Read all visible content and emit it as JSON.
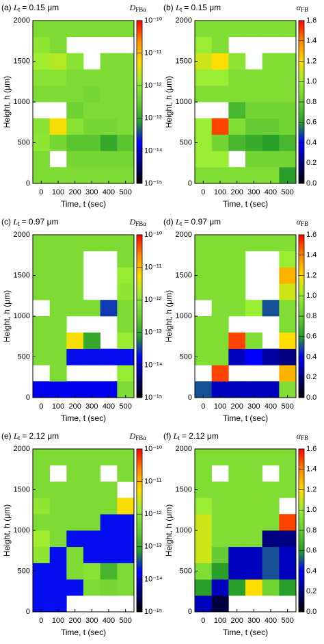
{
  "chart_data": [
    {
      "type": "heatmap",
      "panel_label": "(a)",
      "title_symbol": "L",
      "title_subscript": "t",
      "title_text": "= 0.15 μm",
      "colorbar_symbol": "D",
      "colorbar_subscript": "FBα",
      "xlabel": "Time, t (sec)",
      "ylabel": "Height, h (μm)",
      "xbins": [
        -50,
        50,
        150,
        250,
        350,
        450,
        550
      ],
      "ybins": [
        0,
        200,
        400,
        600,
        800,
        1000,
        1200,
        1400,
        1600,
        1800,
        2000
      ],
      "xlim": [
        -50,
        550
      ],
      "ylim": [
        0,
        2000
      ],
      "xticks": [
        0,
        100,
        200,
        300,
        400,
        500
      ],
      "yticks": [
        0,
        500,
        1000,
        1500,
        2000
      ],
      "zscale": "log",
      "zlim": [
        1e-15,
        1e-10
      ],
      "zticks": [
        {
          "value": 1e-15,
          "label": "10⁻¹⁵"
        },
        {
          "value": 1e-14,
          "label": "10⁻¹⁴"
        },
        {
          "value": 1e-13,
          "label": "10⁻¹³"
        },
        {
          "value": 1e-12,
          "label": "10⁻¹²"
        },
        {
          "value": 1e-11,
          "label": "10⁻¹¹"
        },
        {
          "value": 1e-10,
          "label": "10⁻¹⁰"
        }
      ],
      "colormap": [
        "#000000",
        "#000080",
        "#0000ff",
        "#2aa02a",
        "#66cc33",
        "#99ee33",
        "#ffdd00",
        "#ff8800",
        "#ff0000"
      ],
      "values": [
        [
          6e-13,
          6e-13,
          6e-13,
          6e-13,
          6e-13,
          6e-13
        ],
        [
          6e-13,
          null,
          5e-13,
          5e-13,
          5e-13,
          5e-13
        ],
        [
          1e-12,
          5e-13,
          2.5e-13,
          2.5e-13,
          1e-13,
          2.5e-13
        ],
        [
          8e-13,
          5e-12,
          8e-13,
          5e-13,
          5e-13,
          6e-13
        ],
        [
          null,
          null,
          4e-13,
          6e-13,
          6e-13,
          6e-13
        ],
        [
          6e-13,
          6e-13,
          6e-13,
          5e-13,
          6e-13,
          6e-13
        ],
        [
          8e-13,
          8e-13,
          6e-13,
          6e-13,
          6e-13,
          6e-13
        ],
        [
          1.5e-12,
          2e-12,
          8e-13,
          null,
          6e-13,
          6e-13
        ],
        [
          1e-12,
          6e-13,
          null,
          null,
          null,
          null
        ],
        [
          6e-13,
          6e-13,
          6e-13,
          6e-13,
          6e-13,
          6e-13
        ]
      ]
    },
    {
      "type": "heatmap",
      "panel_label": "(b)",
      "title_symbol": "L",
      "title_subscript": "t",
      "title_text": "= 0.15 μm",
      "colorbar_symbol": "α",
      "colorbar_subscript": "FB",
      "xlabel": "Time, t (sec)",
      "ylabel": "Height, h (μm)",
      "xbins": [
        -50,
        50,
        150,
        250,
        350,
        450,
        550
      ],
      "ybins": [
        0,
        200,
        400,
        600,
        800,
        1000,
        1200,
        1400,
        1600,
        1800,
        2000
      ],
      "xlim": [
        -50,
        550
      ],
      "ylim": [
        0,
        2000
      ],
      "xticks": [
        0,
        100,
        200,
        300,
        400,
        500
      ],
      "yticks": [
        0,
        500,
        1000,
        1500,
        2000
      ],
      "zscale": "linear",
      "zlim": [
        0,
        1.6
      ],
      "zticks": [
        {
          "value": 0,
          "label": "0.0"
        },
        0.2,
        0.4,
        0.6,
        0.8,
        {
          "value": 1,
          "label": "1.0"
        },
        1.2,
        1.4,
        1.6
      ],
      "colormap": [
        "#000000",
        "#000080",
        "#0000ff",
        "#2aa02a",
        "#66cc33",
        "#99ee33",
        "#ffdd00",
        "#ff8800",
        "#ff0000"
      ],
      "values": [
        [
          0.9,
          0.9,
          0.9,
          0.9,
          0.9,
          0.6
        ],
        [
          1.0,
          1.0,
          null,
          0.85,
          0.85,
          0.85
        ],
        [
          1.0,
          0.85,
          0.7,
          0.65,
          0.6,
          0.7
        ],
        [
          1.0,
          1.5,
          0.9,
          0.8,
          0.8,
          0.85
        ],
        [
          null,
          null,
          0.7,
          0.85,
          0.85,
          0.85
        ],
        [
          0.9,
          0.9,
          0.9,
          0.9,
          0.9,
          0.9
        ],
        [
          1.0,
          1.0,
          0.9,
          0.9,
          0.9,
          0.9
        ],
        [
          1.1,
          1.2,
          0.95,
          null,
          0.9,
          0.9
        ],
        [
          1.0,
          0.9,
          null,
          null,
          null,
          null
        ],
        [
          0.9,
          0.9,
          0.9,
          0.9,
          0.9,
          0.9
        ]
      ]
    },
    {
      "type": "heatmap",
      "panel_label": "(c)",
      "title_symbol": "L",
      "title_subscript": "t",
      "title_text": "= 0.97 μm",
      "colorbar_symbol": "D",
      "colorbar_subscript": "FBα",
      "xlabel": "Time, t (sec)",
      "ylabel": "Height, h (μm)",
      "xbins": [
        -50,
        50,
        150,
        250,
        350,
        450,
        550
      ],
      "ybins": [
        0,
        200,
        400,
        600,
        800,
        1000,
        1200,
        1400,
        1600,
        1800,
        2000
      ],
      "xlim": [
        -50,
        550
      ],
      "ylim": [
        0,
        2000
      ],
      "xticks": [
        0,
        100,
        200,
        300,
        400,
        500
      ],
      "yticks": [
        0,
        500,
        1000,
        1500,
        2000
      ],
      "zscale": "log",
      "zlim": [
        1e-15,
        1e-10
      ],
      "zticks": [
        {
          "value": 1e-15,
          "label": "10⁻¹⁵"
        },
        {
          "value": 1e-14,
          "label": "10⁻¹⁴"
        },
        {
          "value": 1e-13,
          "label": "10⁻¹³"
        },
        {
          "value": 1e-12,
          "label": "10⁻¹²"
        },
        {
          "value": 1e-11,
          "label": "10⁻¹¹"
        },
        {
          "value": 1e-10,
          "label": "10⁻¹⁰"
        }
      ],
      "colormap": [
        "#000000",
        "#000080",
        "#0000ff",
        "#2aa02a",
        "#66cc33",
        "#99ee33",
        "#ffdd00",
        "#ff8800",
        "#ff0000"
      ],
      "values": [
        [
          1.5e-14,
          1.5e-14,
          1.5e-14,
          1.5e-14,
          1.5e-14,
          6e-13
        ],
        [
          null,
          6e-13,
          null,
          null,
          null,
          1.2e-12
        ],
        [
          6e-13,
          6e-13,
          2e-14,
          2e-14,
          2e-14,
          2e-14
        ],
        [
          6e-13,
          6e-13,
          5e-12,
          1e-13,
          null,
          1.2e-12
        ],
        [
          6e-13,
          6e-13,
          null,
          null,
          null,
          6e-13
        ],
        [
          null,
          6e-13,
          6e-13,
          6e-13,
          3e-14,
          6e-13
        ],
        [
          6e-13,
          6e-13,
          6e-13,
          null,
          null,
          1e-12
        ],
        [
          6e-13,
          6e-13,
          6e-13,
          null,
          null,
          1.2e-12
        ],
        [
          6e-13,
          6e-13,
          6e-13,
          null,
          null,
          6e-13
        ],
        [
          6e-13,
          6e-13,
          6e-13,
          6e-13,
          6e-13,
          6e-13
        ]
      ]
    },
    {
      "type": "heatmap",
      "panel_label": "(d)",
      "title_symbol": "L",
      "title_subscript": "t",
      "title_text": "= 0.97 μm",
      "colorbar_symbol": "α",
      "colorbar_subscript": "FB",
      "xlabel": "Time, t (sec)",
      "ylabel": "Height, h (μm)",
      "xbins": [
        -50,
        50,
        150,
        250,
        350,
        450,
        550
      ],
      "ybins": [
        0,
        200,
        400,
        600,
        800,
        1000,
        1200,
        1400,
        1600,
        1800,
        2000
      ],
      "xlim": [
        -50,
        550
      ],
      "ylim": [
        0,
        2000
      ],
      "xticks": [
        0,
        100,
        200,
        300,
        400,
        500
      ],
      "yticks": [
        0,
        500,
        1000,
        1500,
        2000
      ],
      "zscale": "linear",
      "zlim": [
        0,
        1.6
      ],
      "zticks": [
        {
          "value": 0,
          "label": "0.0"
        },
        0.2,
        0.4,
        0.6,
        0.8,
        {
          "value": 1,
          "label": "1.0"
        },
        1.2,
        1.4,
        1.6
      ],
      "colormap": [
        "#000000",
        "#000080",
        "#0000ff",
        "#2aa02a",
        "#66cc33",
        "#99ee33",
        "#ffdd00",
        "#ff8800",
        "#ff0000"
      ],
      "values": [
        [
          0.5,
          0.3,
          0.3,
          0.3,
          0.3,
          0.9
        ],
        [
          null,
          1.5,
          null,
          null,
          null,
          1.3
        ],
        [
          0.9,
          0.9,
          0.3,
          0.4,
          0.25,
          0.2
        ],
        [
          0.9,
          0.9,
          1.5,
          0.9,
          null,
          1.2
        ],
        [
          0.9,
          0.9,
          null,
          null,
          null,
          0.9
        ],
        [
          null,
          0.9,
          0.9,
          1.0,
          0.5,
          0.9
        ],
        [
          0.9,
          0.9,
          0.9,
          null,
          null,
          1.1
        ],
        [
          0.9,
          0.9,
          0.9,
          null,
          null,
          1.3
        ],
        [
          0.9,
          0.9,
          0.9,
          null,
          null,
          1.0
        ],
        [
          0.9,
          0.9,
          0.9,
          0.9,
          0.9,
          0.9
        ]
      ]
    },
    {
      "type": "heatmap",
      "panel_label": "(e)",
      "title_symbol": "L",
      "title_subscript": "t",
      "title_text": "= 2.12 μm",
      "colorbar_symbol": "D",
      "colorbar_subscript": "FBα",
      "xlabel": "Time, t (sec)",
      "ylabel": "Height, h (μm)",
      "xbins": [
        -50,
        50,
        150,
        250,
        350,
        450,
        550
      ],
      "ybins": [
        0,
        200,
        400,
        600,
        800,
        1000,
        1200,
        1400,
        1600,
        1800,
        2000
      ],
      "xlim": [
        -50,
        550
      ],
      "ylim": [
        0,
        2000
      ],
      "xticks": [
        0,
        100,
        200,
        300,
        400,
        500
      ],
      "yticks": [
        0,
        500,
        1000,
        1500,
        2000
      ],
      "zscale": "log",
      "zlim": [
        1e-15,
        1e-10
      ],
      "zticks": [
        {
          "value": 1e-15,
          "label": "10⁻¹⁵"
        },
        {
          "value": 1e-14,
          "label": "10⁻¹⁴"
        },
        {
          "value": 1e-13,
          "label": "10⁻¹³"
        },
        {
          "value": 1e-12,
          "label": "10⁻¹²"
        },
        {
          "value": 1e-11,
          "label": "10⁻¹¹"
        },
        {
          "value": 1e-10,
          "label": "10⁻¹⁰"
        }
      ],
      "colormap": [
        "#000000",
        "#000080",
        "#0000ff",
        "#2aa02a",
        "#66cc33",
        "#99ee33",
        "#ffdd00",
        "#ff8800",
        "#ff0000"
      ],
      "values": [
        [
          2e-14,
          2e-14,
          null,
          null,
          null,
          null
        ],
        [
          2e-14,
          2e-14,
          2e-14,
          6e-13,
          5e-13,
          6e-13
        ],
        [
          2e-14,
          2e-14,
          6e-13,
          8e-13,
          1.5e-13,
          6e-13
        ],
        [
          1e-12,
          2e-14,
          6e-13,
          2e-14,
          2e-14,
          2e-14
        ],
        [
          1.5e-12,
          6e-13,
          2e-14,
          2e-14,
          2e-14,
          2e-14
        ],
        [
          6e-13,
          6e-13,
          6e-13,
          6e-13,
          2e-14,
          2e-14
        ],
        [
          1e-12,
          6e-13,
          6e-13,
          6e-13,
          6e-13,
          5e-12
        ],
        [
          6e-13,
          6e-13,
          6e-13,
          6e-13,
          6e-13,
          null
        ],
        [
          6e-13,
          null,
          6e-13,
          6e-13,
          null,
          6e-13
        ],
        [
          6e-13,
          6e-13,
          6e-13,
          6e-13,
          6e-13,
          6e-13
        ]
      ]
    },
    {
      "type": "heatmap",
      "panel_label": "(f)",
      "title_symbol": "L",
      "title_subscript": "t",
      "title_text": "= 2.12 μm",
      "colorbar_symbol": "α",
      "colorbar_subscript": "FB",
      "xlabel": "Time, t (sec)",
      "ylabel": "Height, h (μm)",
      "xbins": [
        -50,
        50,
        150,
        250,
        350,
        450,
        550
      ],
      "ybins": [
        0,
        200,
        400,
        600,
        800,
        1000,
        1200,
        1400,
        1600,
        1800,
        2000
      ],
      "xlim": [
        -50,
        550
      ],
      "ylim": [
        0,
        2000
      ],
      "xticks": [
        0,
        100,
        200,
        300,
        400,
        500
      ],
      "yticks": [
        0,
        500,
        1000,
        1500,
        2000
      ],
      "zscale": "linear",
      "zlim": [
        0,
        1.6
      ],
      "zticks": [
        {
          "value": 0,
          "label": "0.0"
        },
        0.2,
        0.4,
        0.6,
        0.8,
        {
          "value": 1,
          "label": "1.0"
        },
        1.2,
        1.4,
        1.6
      ],
      "colormap": [
        "#000000",
        "#000080",
        "#0000ff",
        "#2aa02a",
        "#66cc33",
        "#99ee33",
        "#ffdd00",
        "#ff8800",
        "#ff0000"
      ],
      "values": [
        [
          0.3,
          0.1,
          null,
          null,
          null,
          null
        ],
        [
          0.6,
          0.3,
          0.6,
          1.2,
          0.85,
          0.6
        ],
        [
          0.9,
          0.6,
          0.3,
          0.3,
          0.5,
          0.3
        ],
        [
          1.1,
          0.8,
          0.3,
          0.3,
          0.5,
          0.3
        ],
        [
          1.1,
          0.9,
          0.9,
          0.9,
          0.2,
          0.2
        ],
        [
          1.1,
          0.9,
          0.9,
          0.9,
          0.9,
          1.5
        ],
        [
          1.0,
          0.9,
          0.9,
          0.9,
          0.9,
          null
        ],
        [
          0.9,
          0.9,
          0.9,
          0.9,
          0.9,
          0.9
        ],
        [
          0.9,
          null,
          0.9,
          0.9,
          null,
          0.9
        ],
        [
          0.9,
          0.9,
          0.9,
          0.9,
          0.9,
          0.9
        ]
      ]
    }
  ]
}
